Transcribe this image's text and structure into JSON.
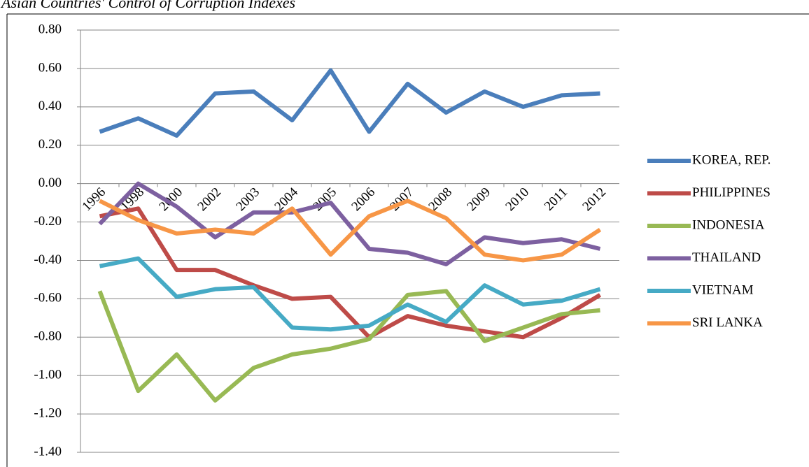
{
  "chart_data": {
    "type": "line",
    "title": "Asian Countries' Control of Corruption Indexes",
    "categories": [
      "1996",
      "1998",
      "2000",
      "2002",
      "2003",
      "2004",
      "2005",
      "2006",
      "2007",
      "2008",
      "2009",
      "2010",
      "2011",
      "2012"
    ],
    "series": [
      {
        "name": "KOREA, REP.",
        "color": "#4a7ebb",
        "values": [
          0.27,
          0.34,
          0.25,
          0.47,
          0.48,
          0.33,
          0.59,
          0.27,
          0.52,
          0.37,
          0.48,
          0.4,
          0.46,
          0.47
        ]
      },
      {
        "name": "PHILIPPINES",
        "color": "#be4b48",
        "values": [
          -0.17,
          -0.13,
          -0.45,
          -0.45,
          -0.53,
          -0.6,
          -0.59,
          -0.8,
          -0.69,
          -0.74,
          -0.77,
          -0.8,
          -0.7,
          -0.58
        ]
      },
      {
        "name": "INDONESIA",
        "color": "#98b954",
        "values": [
          -0.56,
          -1.08,
          -0.89,
          -1.13,
          -0.96,
          -0.89,
          -0.86,
          -0.81,
          -0.58,
          -0.56,
          -0.82,
          -0.75,
          -0.68,
          -0.66
        ]
      },
      {
        "name": "THAILAND",
        "color": "#7d60a0",
        "values": [
          -0.21,
          0.0,
          -0.12,
          -0.28,
          -0.15,
          -0.15,
          -0.1,
          -0.34,
          -0.36,
          -0.42,
          -0.28,
          -0.31,
          -0.29,
          -0.34
        ]
      },
      {
        "name": "VIETNAM",
        "color": "#46aac5",
        "values": [
          -0.43,
          -0.39,
          -0.59,
          -0.55,
          -0.54,
          -0.75,
          -0.76,
          -0.74,
          -0.63,
          -0.72,
          -0.53,
          -0.63,
          -0.61,
          -0.55
        ]
      },
      {
        "name": "SRI LANKA",
        "color": "#f79646",
        "values": [
          -0.09,
          -0.19,
          -0.26,
          -0.24,
          -0.26,
          -0.13,
          -0.37,
          -0.17,
          -0.09,
          -0.18,
          -0.37,
          -0.4,
          -0.37,
          -0.24
        ]
      }
    ],
    "ylim": [
      -1.4,
      0.8
    ],
    "yticks": [
      {
        "value": -1.4,
        "label": "-1.40"
      },
      {
        "value": -1.2,
        "label": "-1.20"
      },
      {
        "value": -1.0,
        "label": "-1.00"
      },
      {
        "value": -0.8,
        "label": "-0.80"
      },
      {
        "value": -0.6,
        "label": "-0.60"
      },
      {
        "value": -0.4,
        "label": "-0.40"
      },
      {
        "value": -0.2,
        "label": "-0.20"
      },
      {
        "value": 0,
        "label": "0.00"
      },
      {
        "value": 0.2,
        "label": "0.20"
      },
      {
        "value": 0.4,
        "label": "0.40"
      },
      {
        "value": 0.6,
        "label": "0.60"
      },
      {
        "value": 0.8,
        "label": "0.80"
      }
    ],
    "grid": true,
    "legend": "right"
  }
}
